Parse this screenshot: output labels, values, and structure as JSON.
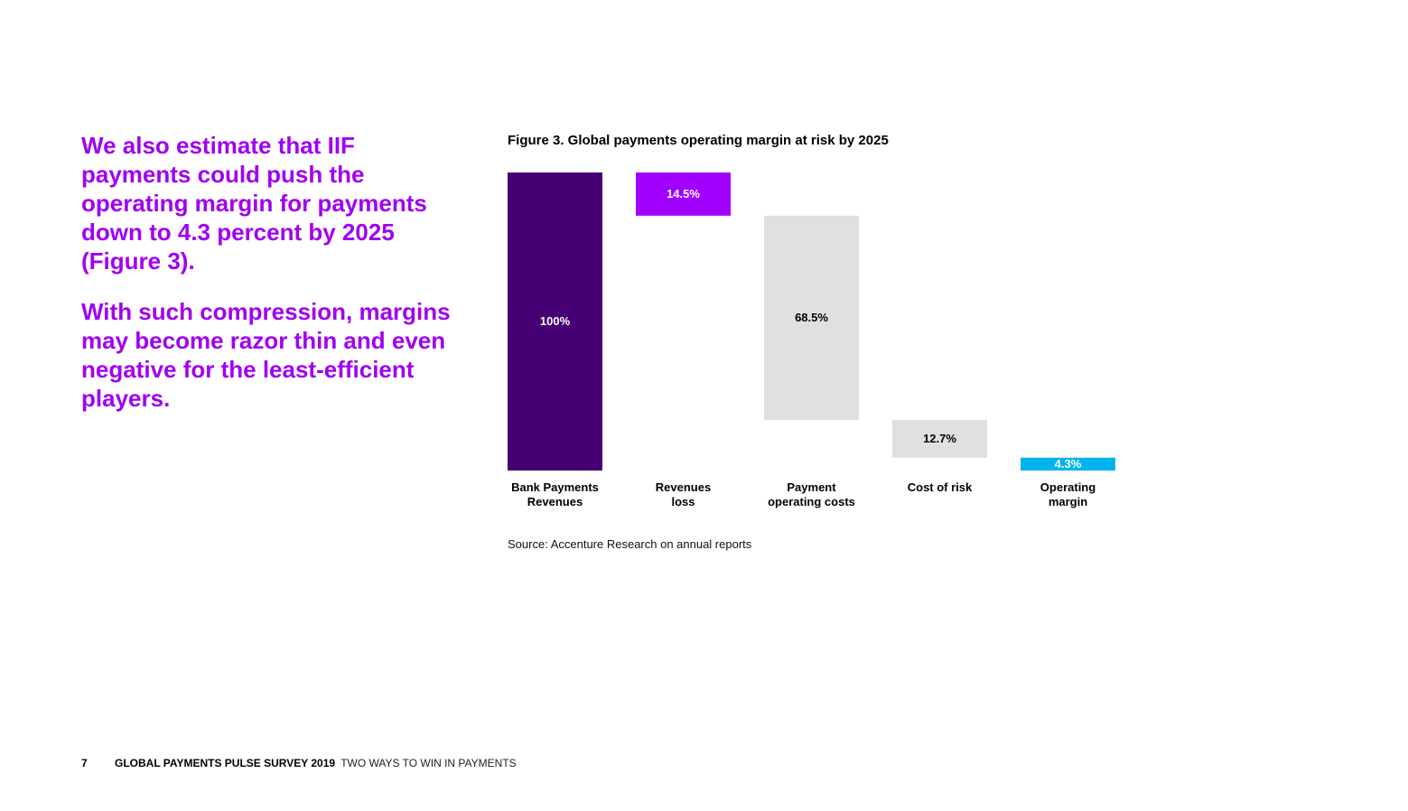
{
  "lead": {
    "paragraph1": "We also estimate that IIF payments could push the operating margin for payments down to 4.3 percent by 2025 (Figure 3).",
    "paragraph2": "With such compression, margins may become razor thin and even negative for the least-efficient players."
  },
  "figure": {
    "title": "Figure 3. Global payments operating margin at risk by 2025",
    "source": "Source: Accenture Research on annual reports"
  },
  "footer": {
    "page_number": "7",
    "report_title": "GLOBAL PAYMENTS PULSE SURVEY 2019",
    "subtitle": "TWO WAYS TO WIN IN PAYMENTS"
  },
  "chart_data": {
    "type": "waterfall",
    "title": "Figure 3. Global payments operating margin at risk by 2025",
    "unit": "%",
    "ylim": [
      0,
      100
    ],
    "grid": false,
    "bars": [
      {
        "label": [
          "Bank Payments",
          "Revenues"
        ],
        "value": 100,
        "base": 0,
        "display": "100%",
        "color": "#460073",
        "text_color": "#ffffff"
      },
      {
        "label": [
          "Revenues",
          "loss"
        ],
        "value": 14.5,
        "base": 85.5,
        "display": "14.5%",
        "color": "#a100ff",
        "text_color": "#ffffff"
      },
      {
        "label": [
          "Payment",
          "operating costs"
        ],
        "value": 68.5,
        "base": 17,
        "display": "68.5%",
        "color": "#e0e0e0",
        "text_color": "#000000"
      },
      {
        "label": [
          "Cost of risk"
        ],
        "value": 12.7,
        "base": 4.3,
        "display": "12.7%",
        "color": "#e0e0e0",
        "text_color": "#000000"
      },
      {
        "label": [
          "Operating",
          "margin"
        ],
        "value": 4.3,
        "base": 0,
        "display": "4.3%",
        "color": "#00b4f0",
        "text_color": "#ffffff"
      }
    ]
  }
}
